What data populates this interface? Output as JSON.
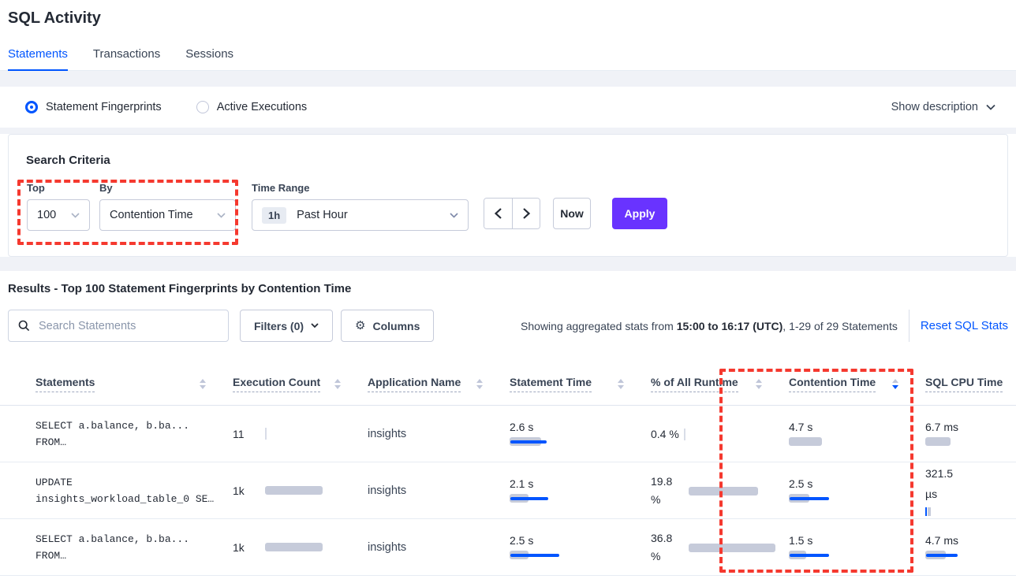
{
  "page_title": "SQL Activity",
  "tabs": [
    {
      "label": "Statements",
      "active": true
    },
    {
      "label": "Transactions",
      "active": false
    },
    {
      "label": "Sessions",
      "active": false
    }
  ],
  "view_toggle": {
    "options": [
      {
        "label": "Statement Fingerprints",
        "selected": true
      },
      {
        "label": "Active Executions",
        "selected": false
      }
    ],
    "show_description_label": "Show description"
  },
  "search_criteria": {
    "heading": "Search Criteria",
    "top_label": "Top",
    "top_value": "100",
    "by_label": "By",
    "by_value": "Contention Time",
    "time_range_label": "Time Range",
    "time_badge": "1h",
    "time_value": "Past Hour",
    "now_label": "Now",
    "apply_label": "Apply"
  },
  "results": {
    "heading": "Results - Top 100 Statement Fingerprints by Contention Time",
    "search_placeholder": "Search Statements",
    "filters_label": "Filters (0)",
    "columns_label": "Columns",
    "stats_prefix": "Showing aggregated stats from ",
    "stats_range": "15:00 to 16:17 (UTC)",
    "stats_suffix": ", 1-29 of 29 Statements",
    "reset_label": "Reset SQL Stats"
  },
  "table": {
    "columns": [
      "Statements",
      "Execution Count",
      "Application Name",
      "Statement Time",
      "% of All Runtime",
      "Contention Time",
      "SQL CPU Time"
    ],
    "sorted_column": "Contention Time",
    "sort_direction": "desc",
    "rows": [
      {
        "statement_line1": "SELECT a.balance, b.ba...",
        "statement_line2": "FROM…",
        "execution_count": "11",
        "application_name": "insights",
        "statement_time": "2.6 s",
        "pct_of_runtime": "0.4 %",
        "contention_time": "4.7 s",
        "sql_cpu_time": "6.7 ms",
        "viz": {
          "execution": {
            "tick": true
          },
          "statement_time": {
            "gray": 40,
            "blue": 46
          },
          "pct_of_runtime": {
            "tick": true
          },
          "contention_time": {
            "gray": 42
          },
          "sql_cpu_time": {
            "gray": 32
          }
        }
      },
      {
        "statement_line1": "UPDATE",
        "statement_line2": "insights_workload_table_0 SE…",
        "execution_count": "1k",
        "application_name": "insights",
        "statement_time": "2.1 s",
        "pct_of_runtime": "19.8 %",
        "contention_time": "2.5 s",
        "sql_cpu_time": "321.5 µs",
        "viz": {
          "execution": {
            "gray": 73
          },
          "statement_time": {
            "gray": 24,
            "blue": 48
          },
          "pct_of_runtime": {
            "gray": 88
          },
          "contention_time": {
            "gray": 26,
            "blue": 50
          },
          "sql_cpu_time": {
            "micro": true
          }
        }
      },
      {
        "statement_line1": "SELECT a.balance, b.ba...",
        "statement_line2": "FROM…",
        "execution_count": "1k",
        "application_name": "insights",
        "statement_time": "2.5 s",
        "pct_of_runtime": "36.8 %",
        "contention_time": "1.5 s",
        "sql_cpu_time": "4.7 ms",
        "viz": {
          "execution": {
            "gray": 73
          },
          "statement_time": {
            "gray": 24,
            "blue": 62
          },
          "pct_of_runtime": {
            "gray": 110
          },
          "contention_time": {
            "gray": 22,
            "blue": 50
          },
          "sql_cpu_time": {
            "gray": 26,
            "blue": 40
          }
        }
      }
    ]
  },
  "colors": {
    "accent_blue": "#0055ff",
    "apply_purple": "#6933ff",
    "annotation_red": "#f5392f",
    "bar_gray": "#c6cbda"
  }
}
